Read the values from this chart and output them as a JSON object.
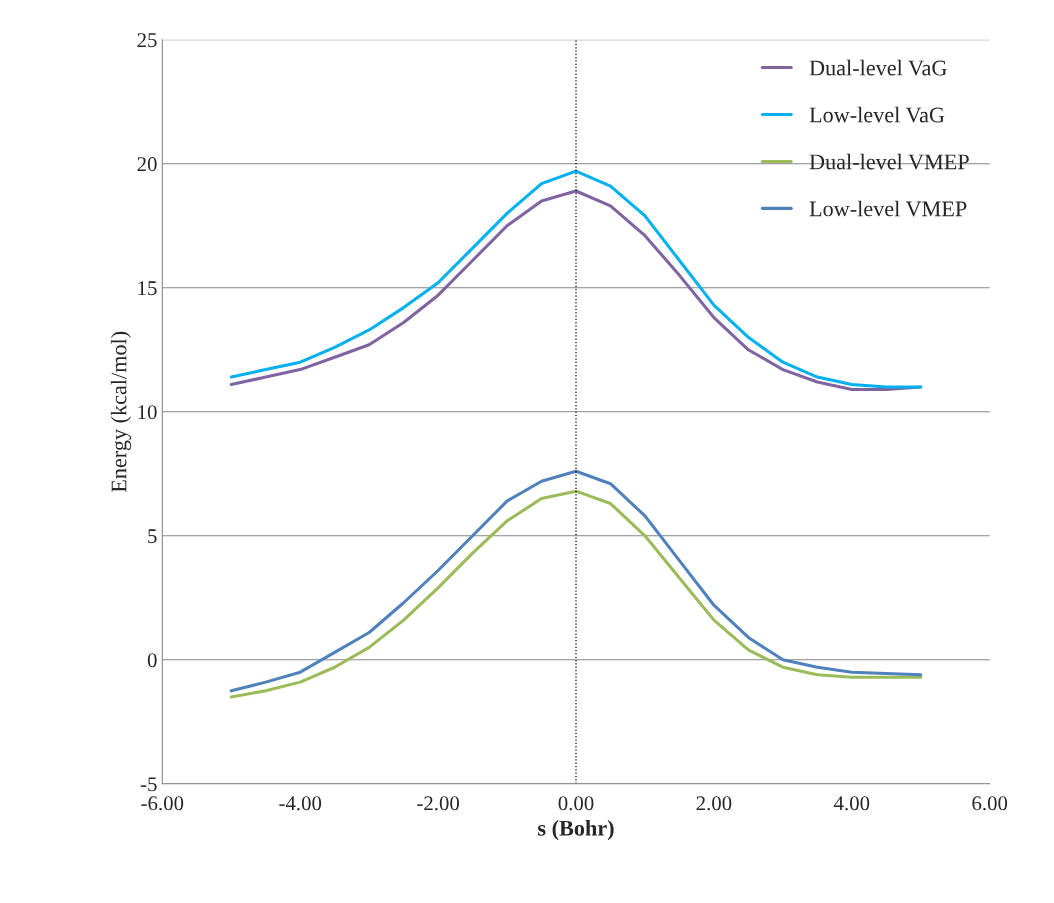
{
  "chart_data": {
    "type": "line",
    "xlabel": "s (Bohr)",
    "ylabel": "Energy (kcal/mol)",
    "x": [
      -5,
      -4.5,
      -4,
      -3.5,
      -3,
      -2.5,
      -2,
      -1.5,
      -1,
      -0.5,
      0,
      0.5,
      1,
      1.5,
      2,
      2.5,
      3,
      3.5,
      4,
      4.5,
      5
    ],
    "series": [
      {
        "name": "Dual-level VaG",
        "color": "#8064a2",
        "values": [
          11.1,
          11.4,
          11.7,
          12.2,
          12.7,
          13.6,
          14.7,
          16.1,
          17.5,
          18.5,
          18.9,
          18.3,
          17.1,
          15.5,
          13.8,
          12.5,
          11.7,
          11.2,
          10.9,
          10.9,
          11.0
        ]
      },
      {
        "name": "Low-level VaG",
        "color": "#00b0f0",
        "values": [
          11.4,
          11.7,
          12.0,
          12.6,
          13.3,
          14.2,
          15.2,
          16.6,
          18.0,
          19.2,
          19.7,
          19.1,
          17.9,
          16.1,
          14.3,
          13.0,
          12.0,
          11.4,
          11.1,
          11.0,
          11.0
        ]
      },
      {
        "name": "Dual-level VMEP",
        "color": "#9bbb59",
        "values": [
          -1.5,
          -1.25,
          -0.9,
          -0.3,
          0.5,
          1.6,
          2.9,
          4.3,
          5.6,
          6.5,
          6.8,
          6.3,
          5.0,
          3.3,
          1.6,
          0.4,
          -0.3,
          -0.6,
          -0.7,
          -0.7,
          -0.7
        ]
      },
      {
        "name": "Low-level VMEP",
        "color": "#4f81bd",
        "values": [
          -1.25,
          -0.9,
          -0.5,
          0.3,
          1.1,
          2.3,
          3.6,
          5.0,
          6.4,
          7.2,
          7.6,
          7.1,
          5.8,
          4.0,
          2.2,
          0.9,
          0.0,
          -0.3,
          -0.5,
          -0.55,
          -0.6
        ]
      }
    ],
    "xlim": [
      -6,
      6
    ],
    "xticks": [
      {
        "value": -6,
        "label": "-6.00"
      },
      {
        "value": -4,
        "label": "-4.00"
      },
      {
        "value": -2,
        "label": "-2.00"
      },
      {
        "value": 0,
        "label": "0.00"
      },
      {
        "value": 2,
        "label": "2.00"
      },
      {
        "value": 4,
        "label": "4.00"
      },
      {
        "value": 6,
        "label": "6.00"
      }
    ],
    "ylim": [
      -5,
      25
    ],
    "yticks": [
      -5,
      0,
      5,
      10,
      15,
      20,
      25
    ],
    "ref_lines": [
      {
        "axis": "x",
        "value": 0,
        "color": "#000000",
        "line_style": "dotted"
      }
    ],
    "grid": "y",
    "legend": "top right",
    "marker": "none",
    "line_style": "solid"
  }
}
